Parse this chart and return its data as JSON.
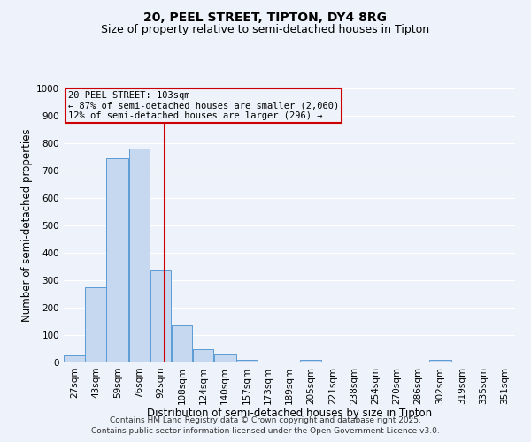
{
  "title": "20, PEEL STREET, TIPTON, DY4 8RG",
  "subtitle": "Size of property relative to semi-detached houses in Tipton",
  "xlabel": "Distribution of semi-detached houses by size in Tipton",
  "ylabel": "Number of semi-detached properties",
  "bar_labels": [
    "27sqm",
    "43sqm",
    "59sqm",
    "76sqm",
    "92sqm",
    "108sqm",
    "124sqm",
    "140sqm",
    "157sqm",
    "173sqm",
    "189sqm",
    "205sqm",
    "221sqm",
    "238sqm",
    "254sqm",
    "270sqm",
    "286sqm",
    "302sqm",
    "319sqm",
    "335sqm",
    "351sqm"
  ],
  "bar_values": [
    25,
    275,
    745,
    780,
    340,
    135,
    50,
    28,
    10,
    0,
    0,
    10,
    0,
    0,
    0,
    0,
    0,
    10,
    0,
    0,
    0
  ],
  "bar_left_edges": [
    27,
    43,
    59,
    76,
    92,
    108,
    124,
    140,
    157,
    173,
    189,
    205,
    221,
    238,
    254,
    270,
    286,
    302,
    319,
    335,
    351
  ],
  "bar_widths": [
    16,
    16,
    17,
    16,
    16,
    16,
    16,
    17,
    16,
    16,
    16,
    16,
    17,
    16,
    16,
    16,
    16,
    17,
    16,
    16,
    16
  ],
  "bar_color": "#c5d8f0",
  "bar_edge_color": "#5b9bd5",
  "vline_x": 103,
  "vline_color": "#cc0000",
  "annotation_line1": "20 PEEL STREET: 103sqm",
  "annotation_line2": "← 87% of semi-detached houses are smaller (2,060)",
  "annotation_line3": "12% of semi-detached houses are larger (296) →",
  "annotation_box_color": "#cc0000",
  "ylim": [
    0,
    1000
  ],
  "yticks": [
    0,
    100,
    200,
    300,
    400,
    500,
    600,
    700,
    800,
    900,
    1000
  ],
  "bg_color": "#eef2fa",
  "grid_color": "#ffffff",
  "footer_line1": "Contains HM Land Registry data © Crown copyright and database right 2025.",
  "footer_line2": "Contains public sector information licensed under the Open Government Licence v3.0.",
  "title_fontsize": 10,
  "subtitle_fontsize": 9,
  "axis_label_fontsize": 8.5,
  "tick_fontsize": 7.5,
  "annotation_fontsize": 7.5,
  "footer_fontsize": 6.5
}
